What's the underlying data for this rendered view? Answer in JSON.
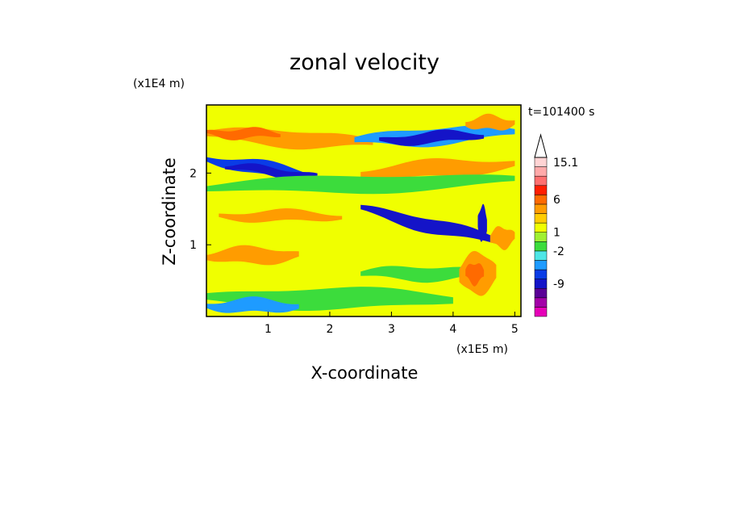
{
  "chart_data": {
    "type": "heatmap",
    "title": "zonal velocity",
    "xlabel": "X-coordinate",
    "ylabel": "Z-coordinate",
    "x_scale_label": "(x1E5 m)",
    "y_scale_label": "(x1E4 m)",
    "time_label": "t=101400 s",
    "xlim": [
      0,
      5.1
    ],
    "ylim": [
      0,
      2.95
    ],
    "x_ticks": [
      {
        "value": 1,
        "label": "1"
      },
      {
        "value": 2,
        "label": "2"
      },
      {
        "value": 3,
        "label": "3"
      },
      {
        "value": 4,
        "label": "4"
      },
      {
        "value": 5,
        "label": "5"
      }
    ],
    "y_ticks": [
      {
        "value": 1,
        "label": "1"
      },
      {
        "value": 2,
        "label": "2"
      }
    ],
    "colorbar": {
      "colors": [
        "#e600b8",
        "#a300a8",
        "#5a0096",
        "#1414c8",
        "#0a3ce6",
        "#1e9bff",
        "#4ee6e6",
        "#3cdc3c",
        "#a0f032",
        "#f0ff00",
        "#ffcc00",
        "#ff9c00",
        "#ff6a00",
        "#ff1e00",
        "#ff7070",
        "#ffaaaa",
        "#ffd4d4"
      ],
      "labels": [
        {
          "index": 3,
          "label": "-9"
        },
        {
          "index": 6.5,
          "label": "-2"
        },
        {
          "index": 8.5,
          "label": "1"
        },
        {
          "index": 12,
          "label": "6"
        },
        {
          "index": 16,
          "label": "15.1"
        }
      ],
      "triangle_color": "#ffffff"
    },
    "background_color": "#f0ff00",
    "features": [
      {
        "kind": "band",
        "z": 2.55,
        "half": 0.12,
        "x0": 0,
        "x1": 2.7,
        "slope": -0.05,
        "color": "#ff9c00"
      },
      {
        "kind": "band",
        "z": 2.55,
        "half": 0.07,
        "x0": 0,
        "x1": 1.2,
        "slope": 0,
        "color": "#ff6a00"
      },
      {
        "kind": "band",
        "z": 2.2,
        "half": 0.1,
        "x0": 0,
        "x1": 2.0,
        "slope": -0.15,
        "color": "#0a3ce6"
      },
      {
        "kind": "band",
        "z": 2.1,
        "half": 0.06,
        "x0": 0.3,
        "x1": 1.8,
        "slope": -0.1,
        "color": "#1414c8"
      },
      {
        "kind": "band",
        "z": 2.45,
        "half": 0.12,
        "x0": 2.4,
        "x1": 5.0,
        "slope": 0.05,
        "color": "#1e9bff"
      },
      {
        "kind": "band",
        "z": 2.45,
        "half": 0.08,
        "x0": 2.8,
        "x1": 4.5,
        "slope": 0.05,
        "color": "#1414c8"
      },
      {
        "kind": "band",
        "z": 2.0,
        "half": 0.12,
        "x0": 2.5,
        "x1": 5.0,
        "slope": 0.05,
        "color": "#ff9c00"
      },
      {
        "kind": "band",
        "z": 1.8,
        "half": 0.12,
        "x0": 0,
        "x1": 5.0,
        "slope": 0.02,
        "color": "#3cdc3c"
      },
      {
        "kind": "band",
        "z": 1.5,
        "half": 0.1,
        "x0": 2.5,
        "x1": 4.8,
        "slope": -0.2,
        "color": "#1414c8"
      },
      {
        "kind": "band",
        "z": 1.4,
        "half": 0.08,
        "x0": 0.2,
        "x1": 2.2,
        "slope": 0,
        "color": "#ff9c00"
      },
      {
        "kind": "band",
        "z": 0.85,
        "half": 0.12,
        "x0": 0,
        "x1": 1.5,
        "slope": 0,
        "color": "#ff9c00"
      },
      {
        "kind": "band",
        "z": 0.6,
        "half": 0.1,
        "x0": 2.5,
        "x1": 4.5,
        "slope": 0,
        "color": "#3cdc3c"
      },
      {
        "kind": "band",
        "z": 0.25,
        "half": 0.15,
        "x0": 0,
        "x1": 4.0,
        "slope": 0,
        "color": "#3cdc3c"
      },
      {
        "kind": "band",
        "z": 0.15,
        "half": 0.1,
        "x0": 0,
        "x1": 1.5,
        "slope": 0,
        "color": "#1e9bff"
      },
      {
        "kind": "band",
        "z": 0.6,
        "half": 0.3,
        "x0": 4.1,
        "x1": 4.7,
        "slope": 0,
        "color": "#ff9c00"
      },
      {
        "kind": "band",
        "z": 0.6,
        "half": 0.15,
        "x0": 4.2,
        "x1": 4.5,
        "slope": 0,
        "color": "#ff6a00"
      },
      {
        "kind": "band",
        "z": 1.3,
        "half": 0.25,
        "x0": 4.4,
        "x1": 4.55,
        "slope": 0,
        "color": "#1414c8"
      },
      {
        "kind": "band",
        "z": 2.7,
        "half": 0.1,
        "x0": 4.2,
        "x1": 5.0,
        "slope": 0,
        "color": "#ff9c00"
      },
      {
        "kind": "band",
        "z": 1.1,
        "half": 0.15,
        "x0": 4.6,
        "x1": 5.0,
        "slope": 0,
        "color": "#ff9c00"
      }
    ]
  }
}
